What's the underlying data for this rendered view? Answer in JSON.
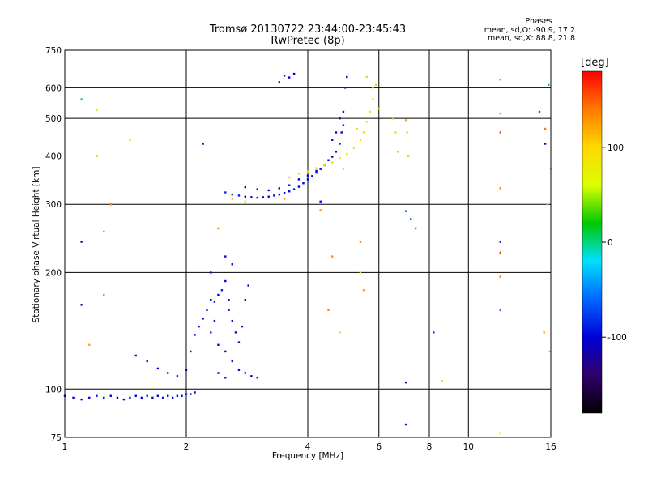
{
  "title_line1": "Tromsø 20130722 23:44:00-23:45:43",
  "title_line2": "RwPretec (8p)",
  "phases": {
    "title": "Phases",
    "line_o": "mean, sd,O: -90.9, 17.2",
    "line_x": "mean, sd,X:  88.8, 21.8"
  },
  "colorbar": {
    "label": "[deg]",
    "range": [
      -180,
      180
    ],
    "ticks": [
      100,
      0,
      -100
    ],
    "tick_labels": [
      "100",
      "0",
      "-100"
    ],
    "stops": [
      "#000000",
      "#30006a",
      "#0000d8",
      "#0066ff",
      "#00e0ff",
      "#00c800",
      "#dcff00",
      "#ffd800",
      "#ff7a00",
      "#ff0000"
    ]
  },
  "chart_data": {
    "type": "scatter",
    "title": "Tromsø 20130722 23:44:00-23:45:43",
    "subtitle": "RwPretec (8p)",
    "xlabel": "Frequency [MHz]",
    "ylabel": "Stationary phase Virtual Height [km]",
    "x_scale": "log",
    "y_scale": "log",
    "xlim": [
      1,
      16
    ],
    "ylim": [
      75,
      750
    ],
    "grid": true,
    "xticks": [
      1,
      2,
      4,
      6,
      8,
      10,
      16
    ],
    "xtick_labels": [
      "1",
      "2",
      "4",
      "6",
      "8",
      "10",
      "16"
    ],
    "yticks": [
      75,
      100,
      200,
      300,
      400,
      500,
      600,
      750
    ],
    "ytick_labels": [
      "75",
      "100",
      "200",
      "300",
      "400",
      "500",
      "600",
      "750"
    ],
    "color_encodes": "phase [deg]",
    "series": [
      {
        "points": [
          [
            1.0,
            96,
            -100
          ],
          [
            1.05,
            95,
            -100
          ],
          [
            1.1,
            94,
            -95
          ],
          [
            1.15,
            95,
            -100
          ],
          [
            1.2,
            96,
            -90
          ],
          [
            1.25,
            95,
            -100
          ],
          [
            1.3,
            96,
            -105
          ],
          [
            1.35,
            95,
            -100
          ],
          [
            1.4,
            94,
            -100
          ],
          [
            1.45,
            95,
            -90
          ],
          [
            1.5,
            96,
            -100
          ],
          [
            1.55,
            95,
            -100
          ],
          [
            1.6,
            96,
            -85
          ],
          [
            1.65,
            95,
            -100
          ],
          [
            1.7,
            96,
            -100
          ],
          [
            1.75,
            95,
            -90
          ],
          [
            1.8,
            96,
            -100
          ],
          [
            1.85,
            95,
            -100
          ],
          [
            1.9,
            96,
            -95
          ],
          [
            1.95,
            96,
            -100
          ],
          [
            2.0,
            97,
            -85
          ],
          [
            2.05,
            97,
            -100
          ],
          [
            2.1,
            98,
            -100
          ],
          [
            1.5,
            122,
            -100
          ],
          [
            1.6,
            118,
            -95
          ],
          [
            1.7,
            113,
            -100
          ],
          [
            1.8,
            110,
            -100
          ],
          [
            1.9,
            108,
            -90
          ],
          [
            2.0,
            112,
            -100
          ],
          [
            2.05,
            125,
            -90
          ],
          [
            2.1,
            138,
            -100
          ],
          [
            2.15,
            145,
            -95
          ],
          [
            2.2,
            152,
            -100
          ],
          [
            2.25,
            160,
            -90
          ],
          [
            2.3,
            170,
            -100
          ],
          [
            2.35,
            168,
            -95
          ],
          [
            2.4,
            175,
            -100
          ],
          [
            2.45,
            180,
            -90
          ],
          [
            2.5,
            190,
            -100
          ],
          [
            2.55,
            160,
            -95
          ],
          [
            2.6,
            150,
            -100
          ],
          [
            2.65,
            140,
            -90
          ],
          [
            2.7,
            132,
            -100
          ],
          [
            2.75,
            145,
            -95
          ],
          [
            2.8,
            170,
            -100
          ],
          [
            2.85,
            185,
            -100
          ],
          [
            2.3,
            140,
            -80
          ],
          [
            2.4,
            130,
            -95
          ],
          [
            2.5,
            125,
            -100
          ],
          [
            2.6,
            118,
            -100
          ],
          [
            2.7,
            112,
            -100
          ],
          [
            2.8,
            110,
            -90
          ],
          [
            2.9,
            108,
            -100
          ],
          [
            3.0,
            107,
            -100
          ],
          [
            2.5,
            107,
            -95
          ],
          [
            2.4,
            110,
            -100
          ],
          [
            2.3,
            200,
            -95
          ],
          [
            2.5,
            220,
            -100
          ],
          [
            2.6,
            210,
            -100
          ],
          [
            2.55,
            170,
            -90
          ],
          [
            2.35,
            150,
            -100
          ],
          [
            2.5,
            322,
            -85
          ],
          [
            2.6,
            318,
            -80
          ],
          [
            2.7,
            316,
            -90
          ],
          [
            2.8,
            314,
            -100
          ],
          [
            2.9,
            313,
            -100
          ],
          [
            3.0,
            312,
            -110
          ],
          [
            3.1,
            313,
            -110
          ],
          [
            3.2,
            314,
            -100
          ],
          [
            3.3,
            316,
            -100
          ],
          [
            3.4,
            318,
            -100
          ],
          [
            3.5,
            321,
            -100
          ],
          [
            3.6,
            324,
            -100
          ],
          [
            3.7,
            328,
            -100
          ],
          [
            3.8,
            333,
            -100
          ],
          [
            3.9,
            340,
            -100
          ],
          [
            4.0,
            348,
            -100
          ],
          [
            4.1,
            355,
            -100
          ],
          [
            4.2,
            362,
            -95
          ],
          [
            4.3,
            370,
            -100
          ],
          [
            4.4,
            380,
            -100
          ],
          [
            4.5,
            390,
            -100
          ],
          [
            4.6,
            398,
            -100
          ],
          [
            4.7,
            410,
            -100
          ],
          [
            4.8,
            430,
            -95
          ],
          [
            4.85,
            460,
            -100
          ],
          [
            4.9,
            520,
            -100
          ],
          [
            4.95,
            600,
            -100
          ],
          [
            5.0,
            640,
            -100
          ],
          [
            4.9,
            480,
            -90
          ],
          [
            4.8,
            500,
            -100
          ],
          [
            4.7,
            460,
            -100
          ],
          [
            4.6,
            440,
            -100
          ],
          [
            2.8,
            332,
            -100
          ],
          [
            3.0,
            328,
            -100
          ],
          [
            3.2,
            326,
            -100
          ],
          [
            3.4,
            330,
            -100
          ],
          [
            3.6,
            336,
            -100
          ],
          [
            3.8,
            348,
            -100
          ],
          [
            4.0,
            356,
            -100
          ],
          [
            4.2,
            366,
            -100
          ],
          [
            4.4,
            378,
            -100
          ],
          [
            3.6,
            352,
            100
          ],
          [
            3.8,
            360,
            100
          ],
          [
            4.0,
            365,
            100
          ],
          [
            4.2,
            372,
            100
          ],
          [
            4.4,
            378,
            100
          ],
          [
            4.6,
            385,
            100
          ],
          [
            4.8,
            395,
            100
          ],
          [
            5.0,
            405,
            100
          ],
          [
            5.2,
            420,
            100
          ],
          [
            5.4,
            440,
            100
          ],
          [
            5.5,
            460,
            95
          ],
          [
            5.6,
            490,
            100
          ],
          [
            5.7,
            520,
            100
          ],
          [
            5.8,
            560,
            100
          ],
          [
            5.9,
            610,
            100
          ],
          [
            5.6,
            640,
            100
          ],
          [
            5.8,
            600,
            95
          ],
          [
            6.0,
            530,
            100
          ],
          [
            5.3,
            470,
            100
          ],
          [
            4.9,
            370,
            100
          ],
          [
            3.5,
            645,
            -105
          ],
          [
            3.6,
            638,
            -100
          ],
          [
            3.7,
            652,
            -105
          ],
          [
            3.4,
            620,
            -100
          ],
          [
            1.1,
            560,
            10
          ],
          [
            1.2,
            525,
            100
          ],
          [
            1.45,
            440,
            100
          ],
          [
            1.3,
            300,
            140
          ],
          [
            1.25,
            255,
            140
          ],
          [
            1.1,
            165,
            -135
          ],
          [
            1.1,
            240,
            -130
          ],
          [
            1.15,
            130,
            120
          ],
          [
            1.25,
            175,
            140
          ],
          [
            1.2,
            400,
            120
          ],
          [
            2.2,
            430,
            -120
          ],
          [
            2.4,
            260,
            130
          ],
          [
            2.6,
            310,
            120
          ],
          [
            2.8,
            305,
            100
          ],
          [
            3.5,
            310,
            130
          ],
          [
            4.3,
            305,
            -95
          ],
          [
            4.3,
            290,
            120
          ],
          [
            4.6,
            220,
            130
          ],
          [
            4.5,
            160,
            140
          ],
          [
            4.8,
            140,
            100
          ],
          [
            5.4,
            240,
            140
          ],
          [
            5.4,
            200,
            100
          ],
          [
            5.5,
            180,
            120
          ],
          [
            6.5,
            500,
            120
          ],
          [
            6.6,
            460,
            100
          ],
          [
            6.7,
            410,
            120
          ],
          [
            7.0,
            495,
            120
          ],
          [
            7.05,
            460,
            100
          ],
          [
            7.1,
            400,
            120
          ],
          [
            7.0,
            288,
            -60
          ],
          [
            7.2,
            275,
            -50
          ],
          [
            7.4,
            260,
            -40
          ],
          [
            8.2,
            140,
            -70
          ],
          [
            8.6,
            105,
            100
          ],
          [
            7.0,
            104,
            -100
          ],
          [
            7.0,
            81,
            -100
          ],
          [
            12.0,
            630,
            140
          ],
          [
            12.0,
            515,
            140
          ],
          [
            12.0,
            460,
            150
          ],
          [
            12.0,
            330,
            140
          ],
          [
            12.0,
            240,
            -100
          ],
          [
            12.0,
            225,
            160
          ],
          [
            12.0,
            195,
            140
          ],
          [
            12.0,
            160,
            -60
          ],
          [
            12.0,
            77,
            100
          ],
          [
            15.0,
            520,
            -60
          ],
          [
            15.5,
            430,
            -110
          ],
          [
            15.8,
            610,
            10
          ],
          [
            15.7,
            300,
            100
          ],
          [
            15.4,
            140,
            120
          ],
          [
            15.9,
            125,
            110
          ],
          [
            16.0,
            370,
            90
          ],
          [
            15.5,
            470,
            140
          ]
        ]
      }
    ]
  }
}
